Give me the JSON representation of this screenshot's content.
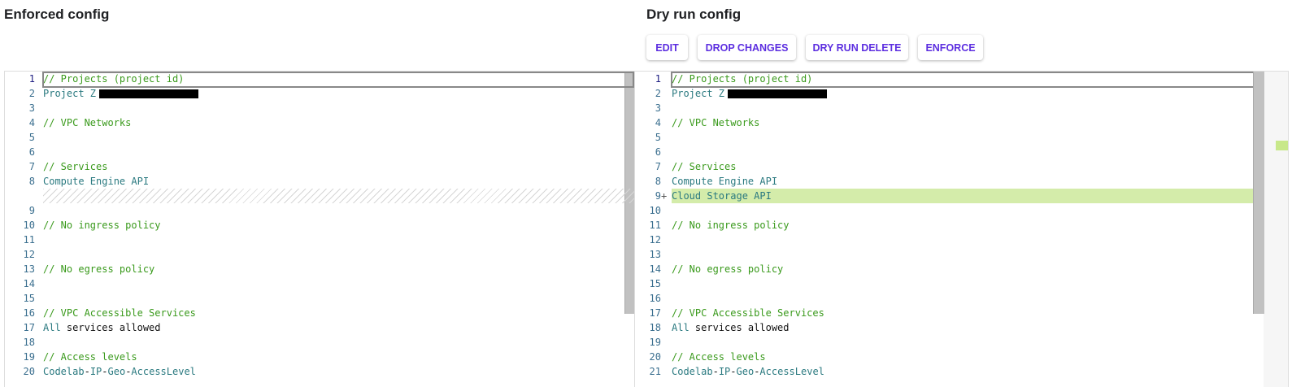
{
  "enforced": {
    "title": "Enforced config",
    "lines": [
      {
        "n": "1",
        "segs": [
          [
            "c",
            "// Projects (project id)"
          ]
        ]
      },
      {
        "n": "2",
        "segs": [
          [
            "t",
            "Project Z"
          ]
        ],
        "redacted": true
      },
      {
        "n": "3",
        "segs": []
      },
      {
        "n": "4",
        "segs": [
          [
            "c",
            "// VPC Networks"
          ]
        ]
      },
      {
        "n": "5",
        "segs": []
      },
      {
        "n": "6",
        "segs": []
      },
      {
        "n": "7",
        "segs": [
          [
            "c",
            "// Services"
          ]
        ]
      },
      {
        "n": "8",
        "segs": [
          [
            "t",
            "Compute Engine API"
          ]
        ]
      },
      {
        "n": "",
        "segs": [],
        "hatch": true
      },
      {
        "n": "9",
        "segs": []
      },
      {
        "n": "10",
        "segs": [
          [
            "c",
            "// No ingress policy"
          ]
        ]
      },
      {
        "n": "11",
        "segs": []
      },
      {
        "n": "12",
        "segs": []
      },
      {
        "n": "13",
        "segs": [
          [
            "c",
            "// No egress policy"
          ]
        ]
      },
      {
        "n": "14",
        "segs": []
      },
      {
        "n": "15",
        "segs": []
      },
      {
        "n": "16",
        "segs": [
          [
            "c",
            "// VPC Accessible Services"
          ]
        ]
      },
      {
        "n": "17",
        "segs": [
          [
            "t",
            "All"
          ],
          [
            "p",
            " services allowed"
          ]
        ]
      },
      {
        "n": "18",
        "segs": []
      },
      {
        "n": "19",
        "segs": [
          [
            "c",
            "// Access levels"
          ]
        ]
      },
      {
        "n": "20",
        "segs": [
          [
            "t",
            "Codelab"
          ],
          [
            "p",
            "-"
          ],
          [
            "t",
            "IP"
          ],
          [
            "p",
            "-"
          ],
          [
            "t",
            "Geo"
          ],
          [
            "p",
            "-"
          ],
          [
            "t",
            "AccessLevel"
          ]
        ]
      }
    ]
  },
  "dryrun": {
    "title": "Dry run config",
    "buttons": [
      "EDIT",
      "DROP CHANGES",
      "DRY RUN DELETE",
      "ENFORCE"
    ],
    "diff_color": "#d4ecaa",
    "lines": [
      {
        "n": "1",
        "segs": [
          [
            "c",
            "// Projects (project id)"
          ]
        ]
      },
      {
        "n": "2",
        "segs": [
          [
            "t",
            "Project Z"
          ]
        ],
        "redacted": true
      },
      {
        "n": "3",
        "segs": []
      },
      {
        "n": "4",
        "segs": [
          [
            "c",
            "// VPC Networks"
          ]
        ]
      },
      {
        "n": "5",
        "segs": []
      },
      {
        "n": "6",
        "segs": []
      },
      {
        "n": "7",
        "segs": [
          [
            "c",
            "// Services"
          ]
        ]
      },
      {
        "n": "8",
        "segs": [
          [
            "t",
            "Compute Engine API"
          ]
        ]
      },
      {
        "n": "9",
        "segs": [
          [
            "t",
            "Cloud Storage API"
          ]
        ],
        "added": true,
        "marker": "+"
      },
      {
        "n": "10",
        "segs": []
      },
      {
        "n": "11",
        "segs": [
          [
            "c",
            "// No ingress policy"
          ]
        ]
      },
      {
        "n": "12",
        "segs": []
      },
      {
        "n": "13",
        "segs": []
      },
      {
        "n": "14",
        "segs": [
          [
            "c",
            "// No egress policy"
          ]
        ]
      },
      {
        "n": "15",
        "segs": []
      },
      {
        "n": "16",
        "segs": []
      },
      {
        "n": "17",
        "segs": [
          [
            "c",
            "// VPC Accessible Services"
          ]
        ]
      },
      {
        "n": "18",
        "segs": [
          [
            "t",
            "All"
          ],
          [
            "p",
            " services allowed"
          ]
        ]
      },
      {
        "n": "19",
        "segs": []
      },
      {
        "n": "20",
        "segs": [
          [
            "c",
            "// Access levels"
          ]
        ]
      },
      {
        "n": "21",
        "segs": [
          [
            "t",
            "Codelab"
          ],
          [
            "p",
            "-"
          ],
          [
            "t",
            "IP"
          ],
          [
            "p",
            "-"
          ],
          [
            "t",
            "Geo"
          ],
          [
            "p",
            "-"
          ],
          [
            "t",
            "AccessLevel"
          ]
        ]
      }
    ]
  }
}
